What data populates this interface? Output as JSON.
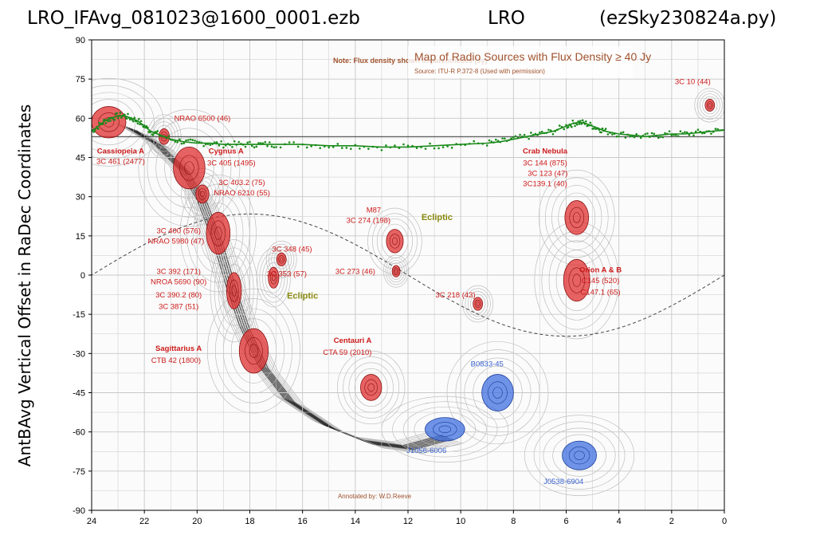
{
  "header": {
    "left": "LRO_IFAvg_081023@1600_0001.ezb",
    "center": "LRO",
    "right": "(ezSky230824a.py)"
  },
  "colors": {
    "trace": "#1a8a1a",
    "radio_red": "#e03030",
    "radio_blue": "#4070e0",
    "label_red": "#cc1a1a",
    "label_blue": "#3a62d0",
    "ecliptic_label": "#8a8a10",
    "map_title": "#a0522d"
  },
  "chart_data": {
    "type": "scatter",
    "title": "",
    "xlabel": "",
    "ylabel": "AntBAvg Vertical Offset in RaDec Coordinates",
    "xlim": [
      24,
      0
    ],
    "ylim": [
      -90,
      90
    ],
    "x_ticks": [
      24,
      22,
      20,
      18,
      16,
      14,
      12,
      10,
      8,
      6,
      4,
      2,
      0
    ],
    "y_ticks": [
      90,
      75,
      60,
      45,
      30,
      15,
      0,
      -15,
      -30,
      -45,
      -60,
      -75,
      -90
    ],
    "grid": true,
    "background_map": {
      "title": "Map of Radio Sources with Flux Density ≥ 40 Jy",
      "source": "Source: ITU-R P.372-8 (Used with permission)",
      "note": "Note: Flux density shown in parentheses (Jy)",
      "annotated_by": "Annotated by: W.D.Reeve",
      "ecliptic_label": "Ecliptic"
    },
    "series": [
      {
        "x": [
          24.0,
          23.75,
          23.5,
          23.25,
          23.0,
          22.75,
          22.5,
          22.25,
          22.0,
          21.75,
          21.5,
          21.0,
          20.5,
          20.0,
          19.5,
          19.0,
          18.5,
          18.0,
          17.5,
          17.0,
          16.0,
          15.0,
          14.0,
          13.0,
          12.0,
          11.0,
          10.0,
          9.0,
          8.5,
          8.0,
          7.5,
          7.0,
          6.5,
          6.0,
          5.75,
          5.5,
          5.25,
          5.0,
          4.75,
          4.5,
          4.0,
          3.5,
          3.0,
          2.5,
          2.0,
          1.5,
          1.0,
          0.5,
          0.0
        ],
        "y": [
          55,
          57,
          59,
          60,
          61,
          61,
          60,
          59,
          57,
          55,
          54,
          52,
          51,
          50.5,
          50.5,
          50,
          50,
          50,
          50,
          50,
          50,
          49.5,
          49.5,
          49,
          49,
          49.5,
          50,
          50.5,
          51,
          52,
          53,
          54,
          55,
          57,
          58,
          58.5,
          58,
          57,
          56,
          55,
          54,
          53.5,
          53,
          53.5,
          54,
          54,
          54.5,
          55,
          55.5
        ]
      }
    ],
    "sources_red": [
      {
        "x": 23.35,
        "y": 58.5,
        "rx": 0.65,
        "ry": 6
      },
      {
        "x": 21.25,
        "y": 53,
        "rx": 0.2,
        "ry": 3
      },
      {
        "x": 20.3,
        "y": 41,
        "rx": 0.6,
        "ry": 8
      },
      {
        "x": 19.8,
        "y": 31,
        "rx": 0.25,
        "ry": 3.5
      },
      {
        "x": 19.2,
        "y": 16,
        "rx": 0.45,
        "ry": 8
      },
      {
        "x": 18.6,
        "y": -6,
        "rx": 0.28,
        "ry": 7
      },
      {
        "x": 17.85,
        "y": -29,
        "rx": 0.55,
        "ry": 8.5
      },
      {
        "x": 17.1,
        "y": -1,
        "rx": 0.2,
        "ry": 4
      },
      {
        "x": 16.8,
        "y": 6,
        "rx": 0.18,
        "ry": 2.5
      },
      {
        "x": 13.4,
        "y": -43,
        "rx": 0.4,
        "ry": 5
      },
      {
        "x": 12.5,
        "y": 13,
        "rx": 0.32,
        "ry": 4.5
      },
      {
        "x": 12.45,
        "y": 1.5,
        "rx": 0.15,
        "ry": 2.2
      },
      {
        "x": 9.35,
        "y": -11,
        "rx": 0.18,
        "ry": 2.5
      },
      {
        "x": 5.6,
        "y": 22,
        "rx": 0.45,
        "ry": 6.5
      },
      {
        "x": 5.6,
        "y": -2,
        "rx": 0.5,
        "ry": 8
      },
      {
        "x": 0.55,
        "y": 65,
        "rx": 0.18,
        "ry": 2.3
      }
    ],
    "sources_blue": [
      {
        "x": 8.6,
        "y": -45,
        "rx": 0.6,
        "ry": 7
      },
      {
        "x": 10.6,
        "y": -59,
        "rx": 0.75,
        "ry": 4.5
      },
      {
        "x": 5.5,
        "y": -69,
        "rx": 0.65,
        "ry": 5.5
      }
    ],
    "source_labels": [
      {
        "text": "NRAO 6500 (46)",
        "x": 19.8,
        "y": 59,
        "bold": false,
        "color": "red"
      },
      {
        "text": "Cassiopeia A",
        "x": 22.9,
        "y": 46.5,
        "bold": true,
        "color": "red"
      },
      {
        "text": "3C 461 (2477)",
        "x": 22.9,
        "y": 42.5,
        "bold": false,
        "color": "red"
      },
      {
        "text": "Cygnus A",
        "x": 18.9,
        "y": 46.5,
        "bold": true,
        "color": "red"
      },
      {
        "text": "3C 405 (1495)",
        "x": 18.7,
        "y": 42,
        "bold": false,
        "color": "red"
      },
      {
        "text": "3C 403.2 (75)",
        "x": 18.3,
        "y": 34.5,
        "bold": false,
        "color": "red"
      },
      {
        "text": "NRAO 6210 (55)",
        "x": 18.3,
        "y": 30.5,
        "bold": false,
        "color": "red"
      },
      {
        "text": "3C 400 (576)",
        "x": 20.7,
        "y": 16,
        "bold": false,
        "color": "red"
      },
      {
        "text": "NRAO 5980 (47)",
        "x": 20.8,
        "y": 12,
        "bold": false,
        "color": "red"
      },
      {
        "text": "3C 348 (45)",
        "x": 16.4,
        "y": 9,
        "bold": false,
        "color": "red"
      },
      {
        "text": "3C 353 (57)",
        "x": 16.6,
        "y": -0.5,
        "bold": false,
        "color": "red"
      },
      {
        "text": "3C 392 (171)",
        "x": 20.7,
        "y": 0.5,
        "bold": false,
        "color": "red"
      },
      {
        "text": "NROA 5690 (90)",
        "x": 20.7,
        "y": -3.5,
        "bold": false,
        "color": "red"
      },
      {
        "text": "3C 390.2 (80)",
        "x": 20.7,
        "y": -8.5,
        "bold": false,
        "color": "red"
      },
      {
        "text": "3C 387  (51)",
        "x": 20.7,
        "y": -13,
        "bold": false,
        "color": "red"
      },
      {
        "text": "Sagittarius A",
        "x": 20.7,
        "y": -29,
        "bold": true,
        "color": "red"
      },
      {
        "text": "CTB 42 (1800)",
        "x": 20.8,
        "y": -33.5,
        "bold": false,
        "color": "red"
      },
      {
        "text": "M87",
        "x": 13.3,
        "y": 24,
        "bold": false,
        "color": "red"
      },
      {
        "text": "3C 274 (198)",
        "x": 13.5,
        "y": 20,
        "bold": false,
        "color": "red"
      },
      {
        "text": "3C 273 (46)",
        "x": 14.0,
        "y": 0.5,
        "bold": false,
        "color": "red"
      },
      {
        "text": "3C 218 (43)",
        "x": 10.2,
        "y": -8.5,
        "bold": false,
        "color": "red"
      },
      {
        "text": "Centauri A",
        "x": 14.1,
        "y": -26,
        "bold": true,
        "color": "red"
      },
      {
        "text": "CTA 59 (2010)",
        "x": 14.3,
        "y": -30.5,
        "bold": false,
        "color": "red"
      },
      {
        "text": "Crab Nebula",
        "x": 6.8,
        "y": 46.5,
        "bold": true,
        "color": "red"
      },
      {
        "text": "3C 144 (875)",
        "x": 6.8,
        "y": 42,
        "bold": false,
        "color": "red"
      },
      {
        "text": "3C 123 (47)",
        "x": 6.7,
        "y": 38,
        "bold": false,
        "color": "red"
      },
      {
        "text": "3C139.1 (40)",
        "x": 6.8,
        "y": 34,
        "bold": false,
        "color": "red"
      },
      {
        "text": "Orion A & B",
        "x": 4.7,
        "y": 1,
        "bold": true,
        "color": "red"
      },
      {
        "text": "C145 (520)",
        "x": 4.7,
        "y": -3,
        "bold": false,
        "color": "red"
      },
      {
        "text": "C147.1 (65)",
        "x": 4.7,
        "y": -7.5,
        "bold": false,
        "color": "red"
      },
      {
        "text": "3C 10 (44)",
        "x": 1.2,
        "y": 73,
        "bold": false,
        "color": "red"
      },
      {
        "text": "B0833-45",
        "x": 9.0,
        "y": -35,
        "bold": false,
        "color": "blue"
      },
      {
        "text": "J1056-6006",
        "x": 11.3,
        "y": -68,
        "bold": false,
        "color": "blue"
      },
      {
        "text": "J0538-6904",
        "x": 6.1,
        "y": -80,
        "bold": false,
        "color": "blue"
      }
    ],
    "ecliptic_labels": [
      {
        "x": 10.9,
        "y": 21
      },
      {
        "x": 16.0,
        "y": -9
      }
    ]
  }
}
